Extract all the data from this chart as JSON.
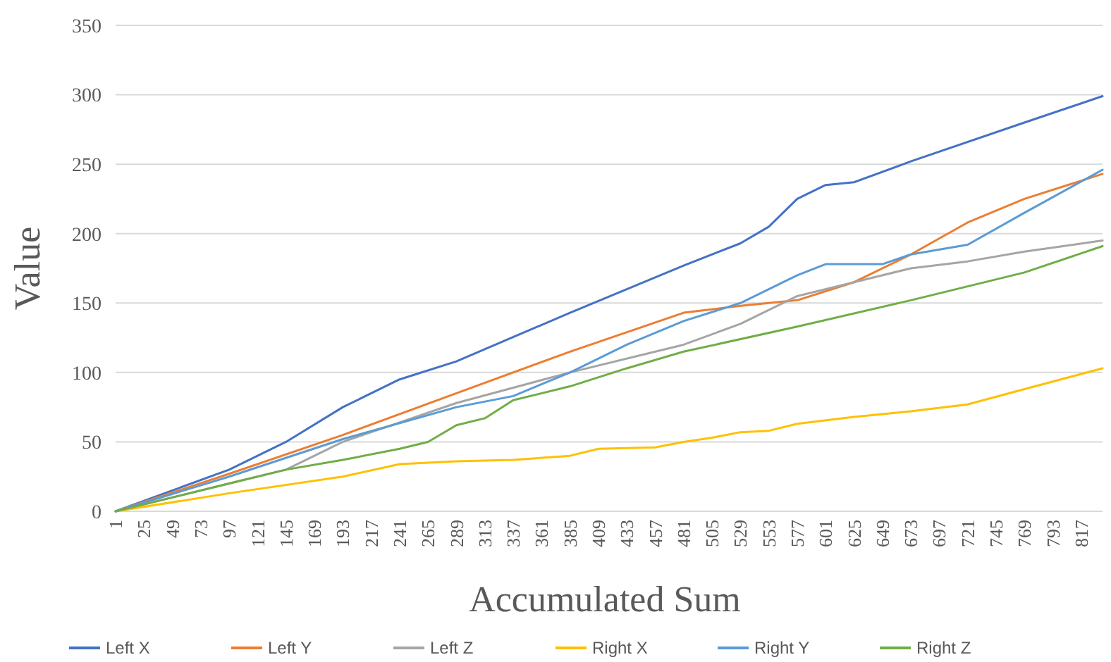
{
  "chart_data": {
    "type": "line",
    "xlabel": "Accumulated Sum",
    "ylabel": "Value",
    "xlim": [
      1,
      835
    ],
    "xticks": [
      1,
      25,
      49,
      73,
      97,
      121,
      145,
      169,
      193,
      217,
      241,
      265,
      289,
      313,
      337,
      361,
      385,
      409,
      433,
      457,
      481,
      505,
      529,
      553,
      577,
      601,
      625,
      649,
      673,
      697,
      721,
      745,
      769,
      793,
      817
    ],
    "ylim": [
      0,
      350
    ],
    "yticks": [
      0,
      50,
      100,
      150,
      200,
      250,
      300,
      350
    ],
    "grid": "y",
    "legend": "bottom",
    "marker": "none",
    "line_style": "solid",
    "series": [
      {
        "name": "Left X",
        "color": "#4472c4",
        "x": [
          1,
          49,
          97,
          145,
          193,
          241,
          289,
          385,
          433,
          481,
          529,
          553,
          577,
          601,
          625,
          673,
          769,
          835
        ],
        "values": [
          0,
          15,
          30,
          50,
          75,
          95,
          108,
          143,
          160,
          177,
          193,
          205,
          225,
          235,
          237,
          252,
          280,
          299
        ]
      },
      {
        "name": "Left Y",
        "color": "#ed7d31",
        "x": [
          1,
          97,
          193,
          289,
          385,
          481,
          529,
          577,
          625,
          673,
          721,
          769,
          835
        ],
        "values": [
          0,
          27,
          55,
          85,
          115,
          143,
          148,
          152,
          165,
          185,
          208,
          225,
          243
        ]
      },
      {
        "name": "Left Z",
        "color": "#a5a5a5",
        "x": [
          1,
          97,
          145,
          193,
          289,
          385,
          481,
          529,
          577,
          625,
          673,
          721,
          769,
          835
        ],
        "values": [
          0,
          20,
          30,
          50,
          78,
          100,
          120,
          135,
          155,
          165,
          175,
          180,
          187,
          195
        ]
      },
      {
        "name": "Right X",
        "color": "#ffc000",
        "x": [
          1,
          97,
          193,
          241,
          289,
          337,
          385,
          409,
          457,
          481,
          505,
          529,
          553,
          577,
          625,
          673,
          721,
          769,
          835
        ],
        "values": [
          0,
          13,
          25,
          34,
          36,
          37,
          40,
          45,
          46,
          50,
          53,
          57,
          58,
          63,
          68,
          72,
          77,
          88,
          103
        ]
      },
      {
        "name": "Right Y",
        "color": "#5b9bd5",
        "x": [
          1,
          97,
          193,
          289,
          337,
          385,
          433,
          481,
          529,
          577,
          601,
          649,
          673,
          721,
          769,
          835
        ],
        "values": [
          0,
          25,
          52,
          75,
          83,
          100,
          120,
          137,
          150,
          170,
          178,
          178,
          185,
          192,
          215,
          246
        ]
      },
      {
        "name": "Right Z",
        "color": "#70ad47",
        "x": [
          1,
          97,
          145,
          193,
          241,
          265,
          289,
          313,
          337,
          385,
          433,
          481,
          577,
          673,
          769,
          835
        ],
        "values": [
          0,
          20,
          30,
          37,
          45,
          50,
          62,
          67,
          80,
          90,
          103,
          115,
          133,
          152,
          172,
          191
        ]
      }
    ]
  }
}
